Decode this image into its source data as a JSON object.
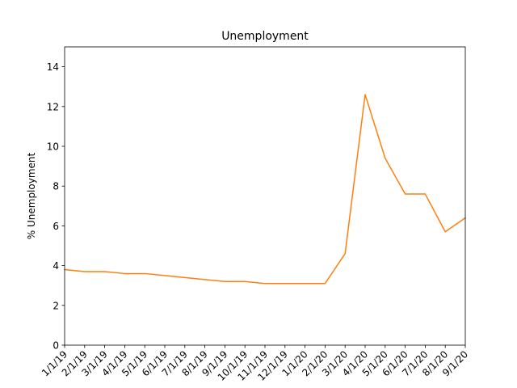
{
  "chart_data": {
    "type": "line",
    "title": "Unemployment",
    "xlabel": "",
    "ylabel": "% Unemployment",
    "categories": [
      "1/1/19",
      "2/1/19",
      "3/1/19",
      "4/1/19",
      "5/1/19",
      "6/1/19",
      "7/1/19",
      "8/1/19",
      "9/1/19",
      "10/1/19",
      "11/1/19",
      "12/1/19",
      "1/1/20",
      "2/1/20",
      "3/1/20",
      "4/1/20",
      "5/1/20",
      "6/1/20",
      "7/1/20",
      "8/1/20",
      "9/1/20"
    ],
    "series": [
      {
        "values": [
          3.8,
          3.7,
          3.7,
          3.6,
          3.6,
          3.5,
          3.4,
          3.3,
          3.2,
          3.2,
          3.1,
          3.1,
          3.1,
          3.1,
          4.6,
          12.6,
          9.4,
          7.6,
          7.6,
          5.7,
          6.4
        ],
        "color": "#ff7f0e"
      }
    ],
    "ylim": [
      0,
      15
    ],
    "yticks": [
      0,
      2,
      4,
      6,
      8,
      10,
      12,
      14
    ],
    "grid": false,
    "legend": "none"
  }
}
